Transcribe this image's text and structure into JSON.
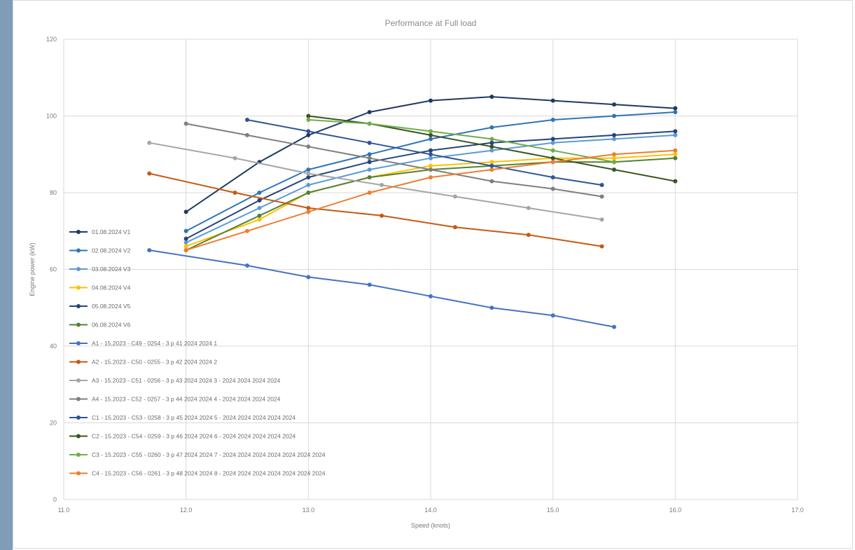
{
  "chart_data": {
    "type": "line",
    "title": "Performance at Full load",
    "xlabel": "Speed (knots)",
    "ylabel": "Engine power (kW)",
    "xlim": [
      11,
      17
    ],
    "ylim": [
      0,
      120
    ],
    "x_ticks": [
      "11.0",
      "12.0",
      "13.0",
      "14.0",
      "15.0",
      "16.0",
      "17.0"
    ],
    "y_ticks": [
      "0",
      "20",
      "40",
      "60",
      "80",
      "100",
      "120"
    ],
    "grid": true,
    "legend_position": "left",
    "series": [
      {
        "name": "01.08.2024 V1",
        "color": "#1f3864",
        "x": [
          12.0,
          12.6,
          13.0,
          13.5,
          14.0,
          14.5,
          15.0,
          15.5,
          16.0
        ],
        "y": [
          75,
          88,
          95,
          101,
          104,
          105,
          104,
          103,
          102
        ]
      },
      {
        "name": "02.08.2024 V2",
        "color": "#2e75b6",
        "x": [
          12.0,
          12.6,
          13.0,
          13.5,
          14.0,
          14.5,
          15.0,
          15.5,
          16.0
        ],
        "y": [
          70,
          80,
          86,
          90,
          94,
          97,
          99,
          100,
          101
        ]
      },
      {
        "name": "03.08.2024 V3",
        "color": "#5b9bd5",
        "x": [
          12.0,
          12.6,
          13.0,
          13.5,
          14.0,
          14.5,
          15.0,
          15.5,
          16.0
        ],
        "y": [
          67,
          76,
          82,
          86,
          89,
          91,
          93,
          94,
          95
        ]
      },
      {
        "name": "04.08.2024 V4",
        "color": "#ffc000",
        "x": [
          12.0,
          12.6,
          13.0,
          13.5,
          14.0,
          14.5,
          15.0,
          15.5,
          16.0
        ],
        "y": [
          66,
          73,
          80,
          84,
          87,
          88,
          89,
          89,
          90
        ]
      },
      {
        "name": "05.08.2024 V5",
        "color": "#264478",
        "x": [
          12.0,
          12.6,
          13.0,
          13.5,
          14.0,
          14.5,
          15.0,
          15.5,
          16.0
        ],
        "y": [
          68,
          78,
          84,
          88,
          91,
          93,
          94,
          95,
          96
        ]
      },
      {
        "name": "06.08.2024 V6",
        "color": "#548235",
        "x": [
          12.0,
          12.6,
          13.0,
          13.5,
          14.0,
          14.5,
          15.0,
          15.5,
          16.0
        ],
        "y": [
          65,
          74,
          80,
          84,
          86,
          87,
          88,
          88,
          89
        ]
      },
      {
        "name": "A1 - 15.2023 - C49 - 0254 - 3 p 41 2024 2024 1",
        "color": "#4472c4",
        "x": [
          11.7,
          12.5,
          13.0,
          13.5,
          14.0,
          14.5,
          15.0,
          15.5
        ],
        "y": [
          65,
          61,
          58,
          56,
          53,
          50,
          48,
          45
        ]
      },
      {
        "name": "A2 - 15.2023 - C50 - 0255 - 3 p 42 2024 2024 2",
        "color": "#c55a11",
        "x": [
          11.7,
          12.4,
          13.0,
          13.6,
          14.2,
          14.8,
          15.4
        ],
        "y": [
          85,
          80,
          76,
          74,
          71,
          69,
          66
        ]
      },
      {
        "name": "A3 - 15.2023 - C51 - 0256 - 3 p 43 2024 2024 3 - 2024 2024 2024 2024",
        "color": "#a5a5a5",
        "x": [
          11.7,
          12.4,
          13.0,
          13.6,
          14.2,
          14.8,
          15.4
        ],
        "y": [
          93,
          89,
          85,
          82,
          79,
          76,
          73
        ]
      },
      {
        "name": "A4 - 15.2023 - C52 - 0257 - 3 p 44 2024 2024 4 - 2024 2024 2024 2024",
        "color": "#7f7f7f",
        "x": [
          12.0,
          12.5,
          13.0,
          13.5,
          14.0,
          14.5,
          15.0,
          15.4
        ],
        "y": [
          98,
          95,
          92,
          89,
          86,
          83,
          81,
          79
        ]
      },
      {
        "name": "C1 - 15.2023 - C53 - 0258 - 3 p 45 2024 2024 5 - 2024 2024 2024 2024 2024",
        "color": "#2f5597",
        "x": [
          12.5,
          13.0,
          13.5,
          14.0,
          14.5,
          15.0,
          15.4
        ],
        "y": [
          99,
          96,
          93,
          90,
          87,
          84,
          82
        ]
      },
      {
        "name": "C2 - 15.2023 - C54 - 0259 - 3 p 46 2024 2024 6 - 2024 2024 2024 2024 2024",
        "color": "#375623",
        "x": [
          13.0,
          13.5,
          14.0,
          14.5,
          15.0,
          15.5,
          16.0
        ],
        "y": [
          100,
          98,
          95,
          92,
          89,
          86,
          83
        ]
      },
      {
        "name": "C3 - 15.2023 - C55 - 0260 - 3 p 47 2024 2024 7 - 2024 2024 2024 2024 2024 2024 2024",
        "color": "#70ad47",
        "x": [
          13.0,
          13.5,
          14.0,
          14.5,
          15.0,
          15.5
        ],
        "y": [
          99,
          98,
          96,
          94,
          91,
          88
        ]
      },
      {
        "name": "C4 - 15.2023 - C56 - 0261 - 3 p 48 2024 2024 8 - 2024 2024 2024 2024 2024 2024 2024",
        "color": "#ed7d31",
        "x": [
          12.0,
          12.5,
          13.0,
          13.5,
          14.0,
          14.5,
          15.0,
          15.5,
          16.0
        ],
        "y": [
          65,
          70,
          75,
          80,
          84,
          86,
          88,
          90,
          91
        ]
      }
    ]
  }
}
